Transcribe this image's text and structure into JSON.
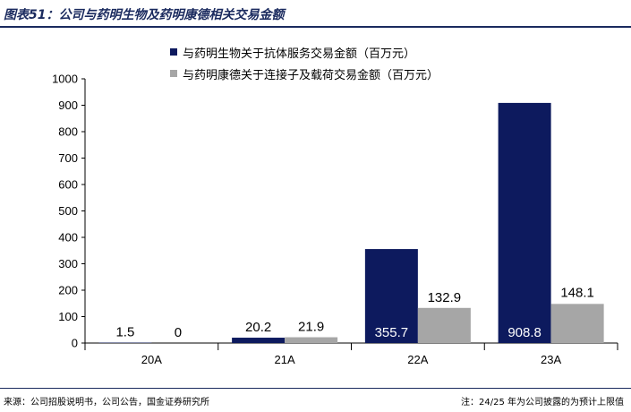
{
  "header": {
    "title": "图表51：公司与药明生物及药明康德相关交易金额"
  },
  "footer": {
    "source": "来源：公司招股说明书，公司公告，国金证券研究所",
    "note": "注：24/25 年为公司披露的为预计上限值"
  },
  "chart_data": {
    "type": "bar",
    "title": "",
    "xlabel": "",
    "ylabel": "",
    "categories": [
      "20A",
      "21A",
      "22A",
      "23A"
    ],
    "ylim": [
      0,
      1000
    ],
    "yticks": [
      0,
      100,
      200,
      300,
      400,
      500,
      600,
      700,
      800,
      900,
      1000
    ],
    "grid": false,
    "legend_position": "top",
    "series": [
      {
        "name": "与药明生物关于抗体服务交易金额（百万元）",
        "color": "#0d1a5e",
        "values": [
          1.5,
          20.2,
          355.7,
          908.8
        ],
        "labels": [
          "1.5",
          "20.2",
          "355.7",
          "908.8"
        ]
      },
      {
        "name": "与药明康德关于连接子及载荷交易金额（百万元）",
        "color": "#a6a6a6",
        "values": [
          0,
          21.9,
          132.9,
          148.1
        ],
        "labels": [
          "0",
          "21.9",
          "132.9",
          "148.1"
        ]
      }
    ]
  }
}
